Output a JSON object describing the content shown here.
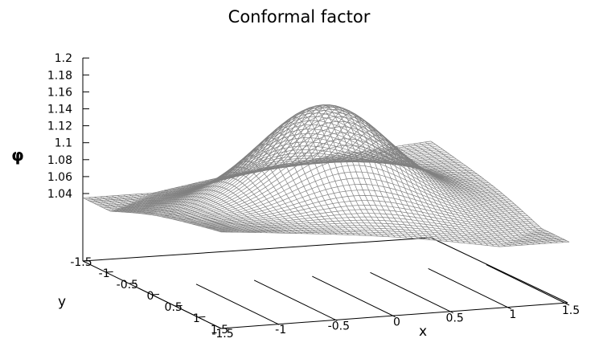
{
  "chart_data": {
    "type": "surface",
    "title": "Conformal factor",
    "zlabel": "φ",
    "xlabel": "x",
    "ylabel": "y",
    "xlim": [
      -1.5,
      1.5
    ],
    "ylim": [
      -1.5,
      1.5
    ],
    "zlim": [
      1.04,
      1.2
    ],
    "z_ticks": [
      "1.2",
      "1.18",
      "1.16",
      "1.14",
      "1.12",
      "1.1",
      "1.08",
      "1.06",
      "1.04"
    ],
    "x_ticks": [
      "-1.5",
      "-1",
      "-0.5",
      "0",
      "0.5",
      "1",
      "1.5"
    ],
    "y_ticks": [
      "-1.5",
      "-1",
      "-0.5",
      "0",
      "0.5",
      "1",
      "1.5"
    ],
    "z_max": 1.17,
    "z_min": 1.035,
    "surface_color": "#808080"
  }
}
